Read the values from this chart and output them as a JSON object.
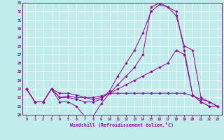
{
  "xlabel": "Windchill (Refroidissement éolien,°C)",
  "bg_color": "#c0ecec",
  "line_color": "#990099",
  "xlim_min": -0.5,
  "xlim_max": 23.5,
  "ylim_min": 20,
  "ylim_max": 33,
  "yticks": [
    20,
    21,
    22,
    23,
    24,
    25,
    26,
    27,
    28,
    29,
    30,
    31,
    32,
    33
  ],
  "xticks": [
    0,
    1,
    2,
    3,
    4,
    5,
    6,
    7,
    8,
    9,
    10,
    11,
    12,
    13,
    14,
    15,
    16,
    17,
    18,
    19,
    20,
    21,
    22,
    23
  ],
  "series": [
    {
      "x": [
        0,
        1,
        2,
        3,
        4,
        5,
        6,
        7,
        8,
        9,
        10,
        11,
        12,
        13,
        14,
        15,
        16,
        17,
        18,
        19,
        20,
        21,
        22,
        23
      ],
      "y": [
        23,
        21.5,
        21.5,
        23,
        21.5,
        21.5,
        21.0,
        19.8,
        19.8,
        21.3,
        22.5,
        23.5,
        24.5,
        25.5,
        27.0,
        32.5,
        33.0,
        32.5,
        32.0,
        27.5,
        22.3,
        21.5,
        21.0,
        21.0
      ]
    },
    {
      "x": [
        0,
        1,
        2,
        3,
        4,
        5,
        6,
        7,
        8,
        9,
        10,
        11,
        12,
        13,
        14,
        15,
        16,
        17,
        18,
        19,
        20,
        21,
        22,
        23
      ],
      "y": [
        23,
        21.5,
        21.5,
        23,
        22.0,
        22.0,
        21.8,
        21.5,
        21.5,
        21.8,
        22.8,
        24.5,
        26.0,
        27.5,
        29.5,
        32.0,
        32.8,
        32.5,
        31.5,
        28.0,
        27.5,
        22.0,
        21.5,
        21.0
      ]
    },
    {
      "x": [
        0,
        1,
        2,
        3,
        4,
        5,
        6,
        7,
        8,
        9,
        10,
        11,
        12,
        13,
        14,
        15,
        16,
        17,
        18,
        19,
        20,
        21,
        22,
        23
      ],
      "y": [
        23,
        21.5,
        21.5,
        23,
        22.5,
        22.5,
        22.3,
        22.0,
        21.8,
        22.0,
        22.5,
        22.5,
        22.5,
        22.5,
        22.5,
        22.5,
        22.5,
        22.5,
        22.5,
        22.5,
        22.2,
        21.8,
        21.5,
        21.0
      ]
    },
    {
      "x": [
        0,
        1,
        2,
        3,
        4,
        5,
        6,
        7,
        8,
        9,
        10,
        11,
        12,
        13,
        14,
        15,
        16,
        17,
        18,
        19,
        20,
        21,
        22,
        23
      ],
      "y": [
        23,
        21.5,
        21.5,
        23,
        22.0,
        22.2,
        22.0,
        22.0,
        22.0,
        22.2,
        22.5,
        23.0,
        23.5,
        24.0,
        24.5,
        25.0,
        25.5,
        26.0,
        27.5,
        27.0,
        22.3,
        21.5,
        21.0,
        21.0
      ]
    }
  ]
}
